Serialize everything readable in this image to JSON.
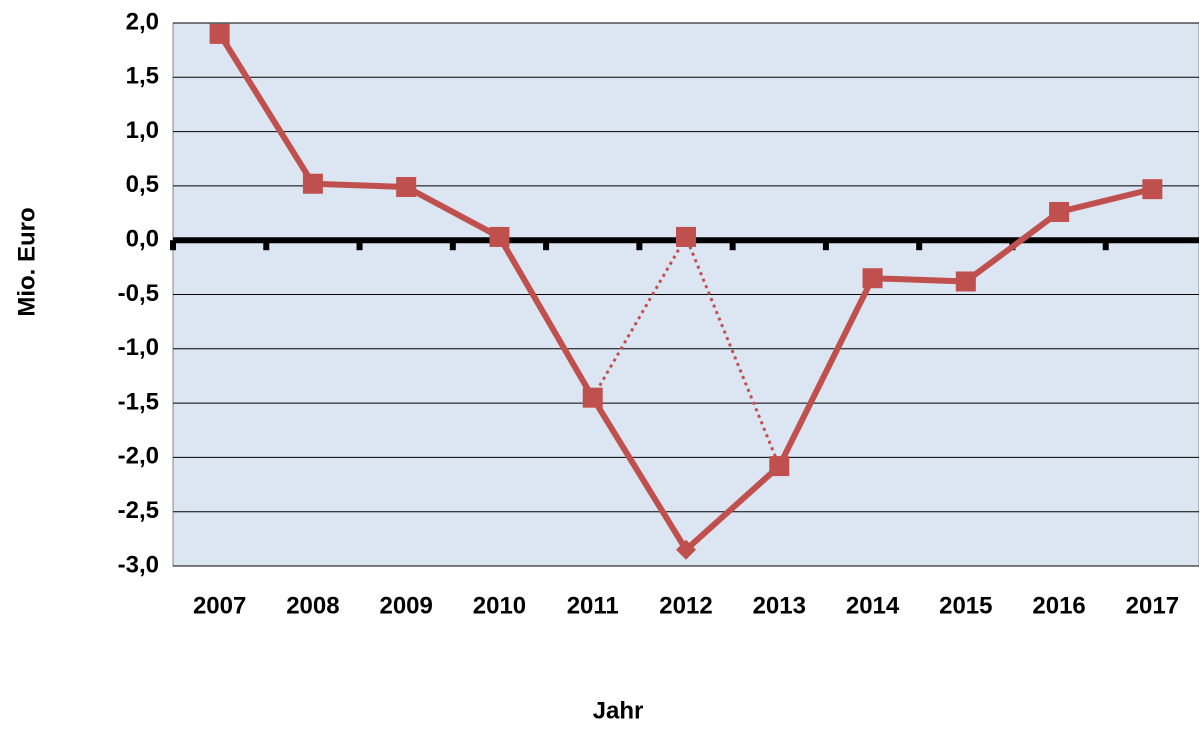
{
  "chart_data": {
    "type": "line",
    "x_label": "Jahr",
    "y_label": "Mio. Euro",
    "categories": [
      "2007",
      "2008",
      "2009",
      "2010",
      "2011",
      "2012",
      "2013",
      "2014",
      "2015",
      "2016",
      "2017"
    ],
    "series": [
      {
        "color": "#c0504d",
        "dash": "solid",
        "markers": [
          "square",
          "square",
          "square",
          "square",
          "square",
          "diamond",
          "square",
          "square",
          "square",
          "square",
          "square"
        ],
        "values": [
          1.9,
          0.52,
          0.49,
          0.03,
          -1.45,
          -2.85,
          -2.08,
          -0.35,
          -0.38,
          0.26,
          0.47
        ]
      },
      {
        "color": "#c0504d",
        "dash": "dotted",
        "markers": [
          null,
          null,
          null,
          null,
          null,
          "square",
          null,
          null,
          null,
          null,
          null
        ],
        "values": [
          null,
          null,
          null,
          null,
          -1.45,
          0.03,
          -2.08,
          null,
          null,
          null,
          null
        ]
      }
    ],
    "ylim": [
      -3,
      2
    ],
    "yticks": [
      {
        "value": -3,
        "label": "-3,0"
      },
      {
        "value": -2.5,
        "label": "-2,5"
      },
      {
        "value": -2,
        "label": "-2,0"
      },
      {
        "value": -1.5,
        "label": "-1,5"
      },
      {
        "value": -1,
        "label": "-1,0"
      },
      {
        "value": -0.5,
        "label": "-0,5"
      },
      {
        "value": 0,
        "label": "0,0"
      },
      {
        "value": 0.5,
        "label": "0,5"
      },
      {
        "value": 1,
        "label": "1,0"
      },
      {
        "value": 1.5,
        "label": "1,5"
      },
      {
        "value": 2,
        "label": "2,0"
      }
    ],
    "grid": true,
    "plot_background": "#dce6f2"
  }
}
